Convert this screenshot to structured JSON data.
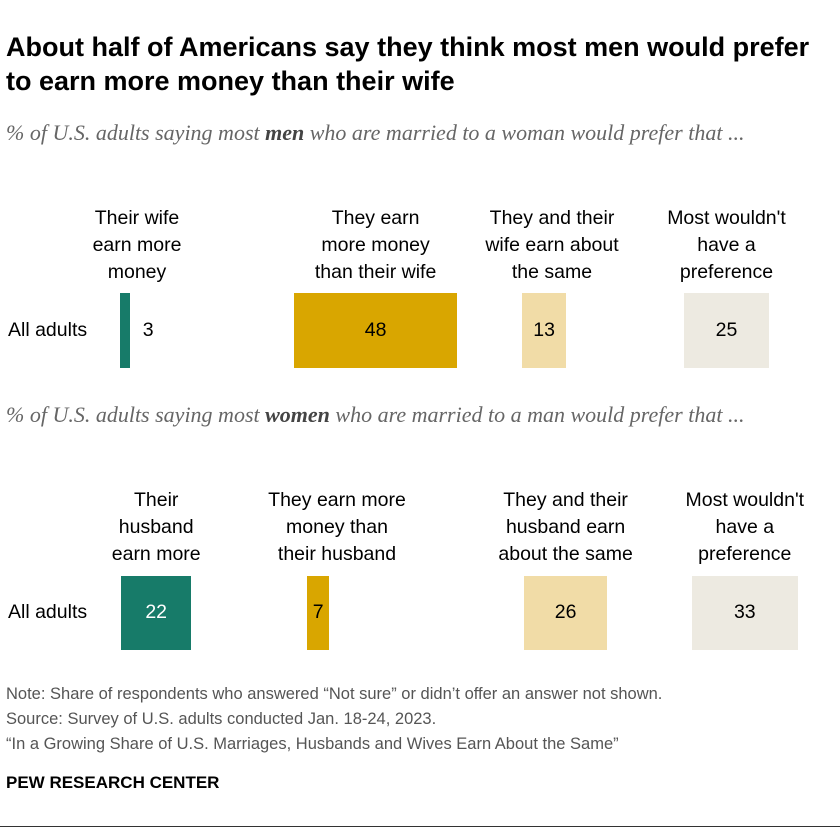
{
  "title": "About half of Americans say they think most men would prefer to earn more money than their wife",
  "chart_data": [
    {
      "type": "bar",
      "subtitle_pre": "% of U.S. adults saying most ",
      "subtitle_bold": "men",
      "subtitle_post": " who are married to a woman would prefer that ...",
      "row": "All adults",
      "categories": [
        "Their wife\nearn more\nmoney",
        "They earn\nmore money\nthan their wife",
        "They and their\nwife earn about\nthe same",
        "Most wouldn't\nhave a\npreference"
      ],
      "values": [
        3,
        48,
        13,
        25
      ]
    },
    {
      "type": "bar",
      "subtitle_pre": "% of U.S. adults saying most ",
      "subtitle_bold": "women",
      "subtitle_post": " who are married to a man would prefer that ...",
      "row": "All adults",
      "categories": [
        "Their\nhusband\nearn more",
        "They earn more\nmoney than\ntheir husband",
        "They and their\nhusband earn\nabout the same",
        "Most wouldn't\nhave a\npreference"
      ],
      "values": [
        22,
        7,
        26,
        33
      ]
    }
  ],
  "colors": [
    "#177b69",
    "#d9a600",
    "#f1dca7",
    "#edeae1"
  ],
  "notes": [
    "Note: Share of respondents who answered “Not sure” or didn’t offer an answer not shown.",
    "Source: Survey of U.S. adults conducted Jan. 18-24, 2023.",
    "“In a Growing Share of U.S. Marriages, Husbands and Wives Earn About the Same”"
  ],
  "brand": "PEW RESEARCH CENTER"
}
